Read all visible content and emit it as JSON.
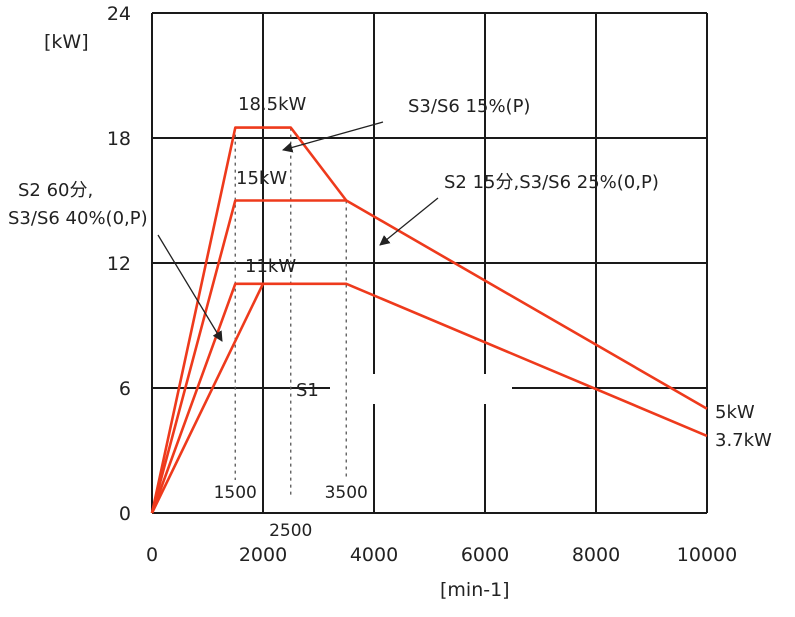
{
  "chart_data": {
    "type": "line",
    "title": "",
    "xlabel": "[min-1]",
    "ylabel": "[kW]",
    "xlim": [
      0,
      10000
    ],
    "ylim": [
      0,
      24
    ],
    "grid": true,
    "x_ticks": [
      {
        "value": 0,
        "label": "0"
      },
      {
        "value": 2000,
        "label": "2000"
      },
      {
        "value": 4000,
        "label": "4000"
      },
      {
        "value": 6000,
        "label": "6000"
      },
      {
        "value": 8000,
        "label": "8000"
      },
      {
        "value": 10000,
        "label": "10000"
      }
    ],
    "y_ticks": [
      {
        "value": 0,
        "label": "0"
      },
      {
        "value": 6,
        "label": "6"
      },
      {
        "value": 12,
        "label": "12"
      },
      {
        "value": 18,
        "label": "18"
      },
      {
        "value": 24,
        "label": "24"
      }
    ],
    "extra_x_ticks": [
      {
        "value": 1500,
        "label": "1500"
      },
      {
        "value": 2500,
        "label": "2500"
      },
      {
        "value": 3500,
        "label": "3500"
      }
    ],
    "series": [
      {
        "x": [
          0,
          1500,
          2500,
          3500
        ],
        "y": [
          0,
          18.5,
          18.5,
          15
        ]
      },
      {
        "x": [
          0,
          1500,
          3500,
          10000
        ],
        "y": [
          0,
          15,
          15,
          5
        ]
      },
      {
        "x": [
          0,
          1500,
          2000,
          3500,
          10000
        ],
        "y": [
          0,
          11,
          11,
          11,
          3.7
        ]
      },
      {
        "x": [
          0,
          2000
        ],
        "y": [
          0,
          11
        ]
      }
    ],
    "guides": [
      {
        "x": 1500,
        "y_top": 18.5
      },
      {
        "x": 2500,
        "y_top": 18.5
      },
      {
        "x": 3500,
        "y_top": 15
      }
    ],
    "annotations": {
      "p185": "18.5kW",
      "p15": "15kW",
      "p11": "11kW",
      "s3s6_15": "S3/S6 15%(P)",
      "s2_15": "S2 15分,S3/S6 25%(0,P)",
      "s2_60_l1": "S2 60分,",
      "s2_60_l2": "S3/S6 40%(0,P)",
      "s1": "S1",
      "end5": "5kW",
      "end37": "3.7kW"
    },
    "colors": {
      "curve": "#ee3a1c",
      "grid": "#1a1a1a",
      "text": "#222222"
    }
  }
}
